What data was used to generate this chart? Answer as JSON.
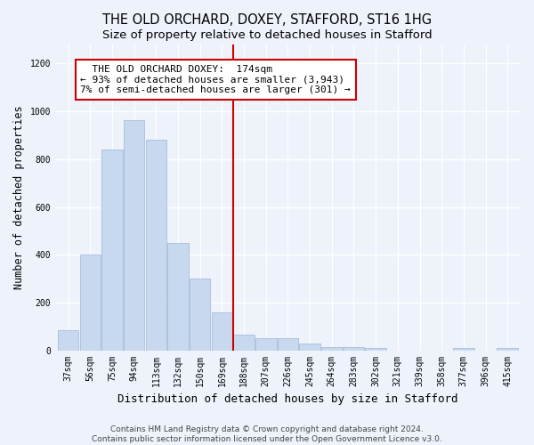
{
  "title": "THE OLD ORCHARD, DOXEY, STAFFORD, ST16 1HG",
  "subtitle": "Size of property relative to detached houses in Stafford",
  "xlabel": "Distribution of detached houses by size in Stafford",
  "ylabel": "Number of detached properties",
  "categories": [
    "37sqm",
    "56sqm",
    "75sqm",
    "94sqm",
    "113sqm",
    "132sqm",
    "150sqm",
    "169sqm",
    "188sqm",
    "207sqm",
    "226sqm",
    "245sqm",
    "264sqm",
    "283sqm",
    "302sqm",
    "321sqm",
    "339sqm",
    "358sqm",
    "377sqm",
    "396sqm",
    "415sqm"
  ],
  "values": [
    85,
    400,
    840,
    965,
    880,
    450,
    300,
    160,
    65,
    50,
    50,
    30,
    15,
    15,
    10,
    0,
    0,
    0,
    10,
    0,
    10
  ],
  "bar_color": "#c8d9ef",
  "bar_edge_color": "#9ab5d8",
  "vline_color": "#cc0000",
  "annotation_lines": [
    "  THE OLD ORCHARD DOXEY:  174sqm",
    "← 93% of detached houses are smaller (3,943)",
    "7% of semi-detached houses are larger (301) →"
  ],
  "ylim": [
    0,
    1280
  ],
  "yticks": [
    0,
    200,
    400,
    600,
    800,
    1000,
    1200
  ],
  "footer_line1": "Contains HM Land Registry data © Crown copyright and database right 2024.",
  "footer_line2": "Contains public sector information licensed under the Open Government Licence v3.0.",
  "background_color": "#eef2fb",
  "grid_color": "#ffffff",
  "title_fontsize": 10.5,
  "subtitle_fontsize": 9.5,
  "ylabel_fontsize": 8.5,
  "xlabel_fontsize": 9,
  "tick_fontsize": 7,
  "annotation_fontsize": 8,
  "footer_fontsize": 6.5
}
